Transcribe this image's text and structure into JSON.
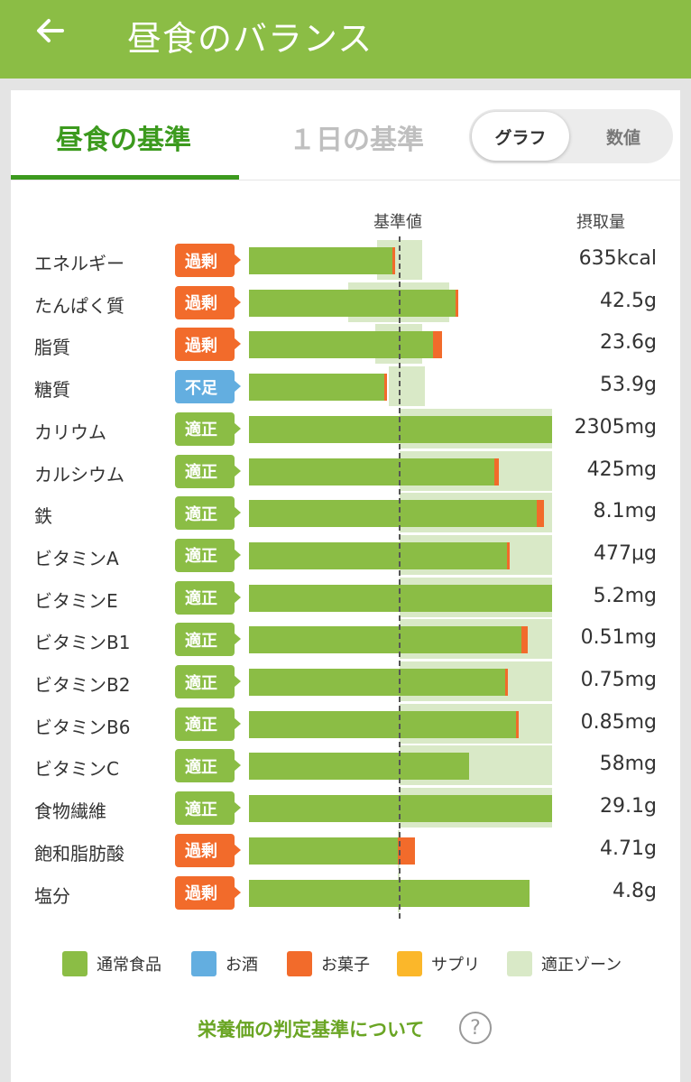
{
  "appbar": {
    "title": "昼食のバランス",
    "back_icon": "arrow-left-icon"
  },
  "tabs": {
    "lunch": "昼食の基準",
    "day": "１日の基準"
  },
  "toggle": {
    "graph": "グラフ",
    "value": "数値"
  },
  "headers": {
    "reference": "基準値",
    "intake": "摂取量"
  },
  "colors": {
    "normal": "#8bbd45",
    "alcohol": "#63aee0",
    "snack": "#f26b2b",
    "supplement": "#fbb72a",
    "zone": "#d9e9c7",
    "excess": "#f26b2b",
    "lack": "#63aee0",
    "ok": "#8bbd45"
  },
  "nutrients": [
    {
      "name": "エネルギー",
      "status": "過剰",
      "status_type": "excess",
      "amount": "635kcal",
      "normal_pct": 0.95,
      "snack_pct": 0.02,
      "zone": [
        0.85,
        1.15
      ]
    },
    {
      "name": "たんぱく質",
      "status": "過剰",
      "status_type": "excess",
      "amount": "42.5g",
      "normal_pct": 1.37,
      "snack_pct": 0.01,
      "zone": [
        0.66,
        1.33
      ]
    },
    {
      "name": "脂質",
      "status": "過剰",
      "status_type": "excess",
      "amount": "23.6g",
      "normal_pct": 1.22,
      "snack_pct": 0.06,
      "zone": [
        0.84,
        1.15
      ]
    },
    {
      "name": "糖質",
      "status": "不足",
      "status_type": "lack",
      "amount": "53.9g",
      "normal_pct": 0.9,
      "snack_pct": 0.01,
      "zone": [
        0.93,
        1.17
      ]
    },
    {
      "name": "カリウム",
      "status": "適正",
      "status_type": "ok",
      "amount": "2305mg",
      "normal_pct": 2.01,
      "snack_pct": 0.0,
      "zone": [
        1.0,
        2.01
      ]
    },
    {
      "name": "カルシウム",
      "status": "適正",
      "status_type": "ok",
      "amount": "425mg",
      "normal_pct": 1.63,
      "snack_pct": 0.03,
      "zone": [
        1.0,
        2.01
      ]
    },
    {
      "name": "鉄",
      "status": "適正",
      "status_type": "ok",
      "amount": "8.1mg",
      "normal_pct": 1.91,
      "snack_pct": 0.05,
      "zone": [
        1.0,
        2.01
      ]
    },
    {
      "name": "ビタミンA",
      "status": "適正",
      "status_type": "ok",
      "amount": "477μg",
      "normal_pct": 1.71,
      "snack_pct": 0.01,
      "zone": [
        1.0,
        2.01
      ]
    },
    {
      "name": "ビタミンE",
      "status": "適正",
      "status_type": "ok",
      "amount": "5.2mg",
      "normal_pct": 2.01,
      "snack_pct": 0.0,
      "zone": [
        1.0,
        2.01
      ]
    },
    {
      "name": "ビタミンB1",
      "status": "適正",
      "status_type": "ok",
      "amount": "0.51mg",
      "normal_pct": 1.81,
      "snack_pct": 0.04,
      "zone": [
        1.0,
        2.01
      ]
    },
    {
      "name": "ビタミンB2",
      "status": "適正",
      "status_type": "ok",
      "amount": "0.75mg",
      "normal_pct": 1.7,
      "snack_pct": 0.01,
      "zone": [
        1.0,
        2.01
      ]
    },
    {
      "name": "ビタミンB6",
      "status": "適正",
      "status_type": "ok",
      "amount": "0.85mg",
      "normal_pct": 1.77,
      "snack_pct": 0.01,
      "zone": [
        1.0,
        2.01
      ]
    },
    {
      "name": "ビタミンC",
      "status": "適正",
      "status_type": "ok",
      "amount": "58mg",
      "normal_pct": 1.46,
      "snack_pct": 0.0,
      "zone": [
        1.0,
        2.01
      ]
    },
    {
      "name": "食物繊維",
      "status": "適正",
      "status_type": "ok",
      "amount": "29.1g",
      "normal_pct": 2.01,
      "snack_pct": 0.0,
      "zone": [
        1.0,
        2.01
      ]
    },
    {
      "name": "飽和脂肪酸",
      "status": "過剰",
      "status_type": "excess",
      "amount": "4.71g",
      "normal_pct": 0.99,
      "snack_pct": 0.11,
      "zone": [
        0.99,
        1.0
      ]
    },
    {
      "name": "塩分",
      "status": "過剰",
      "status_type": "excess",
      "amount": "4.8g",
      "normal_pct": 1.86,
      "snack_pct": 0.0,
      "zone": [
        0.99,
        1.0
      ]
    }
  ],
  "legend": [
    {
      "label": "通常食品",
      "color": "#8bbd45"
    },
    {
      "label": "お酒",
      "color": "#63aee0"
    },
    {
      "label": "お菓子",
      "color": "#f26b2b"
    },
    {
      "label": "サプリ",
      "color": "#fbb72a"
    },
    {
      "label": "適正ゾーン",
      "color": "#d9e9c7"
    }
  ],
  "footer": {
    "link": "栄養価の判定基準について",
    "help": "?"
  }
}
